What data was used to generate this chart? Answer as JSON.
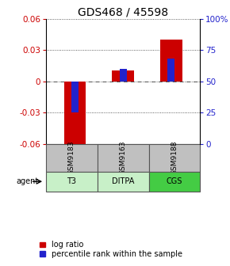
{
  "title": "GDS468 / 45598",
  "samples": [
    "GSM9183",
    "GSM9163",
    "GSM9188"
  ],
  "agents": [
    "T3",
    "DITPA",
    "CGS"
  ],
  "log_ratio": [
    -0.065,
    0.01,
    0.04
  ],
  "percentile_rank": [
    25,
    60,
    68
  ],
  "ylim_left": [
    -0.06,
    0.06
  ],
  "ylim_right": [
    0,
    100
  ],
  "yticks_left": [
    -0.06,
    -0.03,
    0,
    0.03,
    0.06
  ],
  "yticks_right": [
    0,
    25,
    50,
    75,
    100
  ],
  "ytick_labels_right": [
    "0",
    "25",
    "50",
    "75",
    "100%"
  ],
  "red_color": "#cc0000",
  "blue_color": "#2222cc",
  "gray_bg": "#c0c0c0",
  "green_bg_light": "#c8f0c8",
  "green_bg_dark": "#44cc44",
  "title_fontsize": 10,
  "tick_fontsize": 7.5,
  "legend_fontsize": 7
}
